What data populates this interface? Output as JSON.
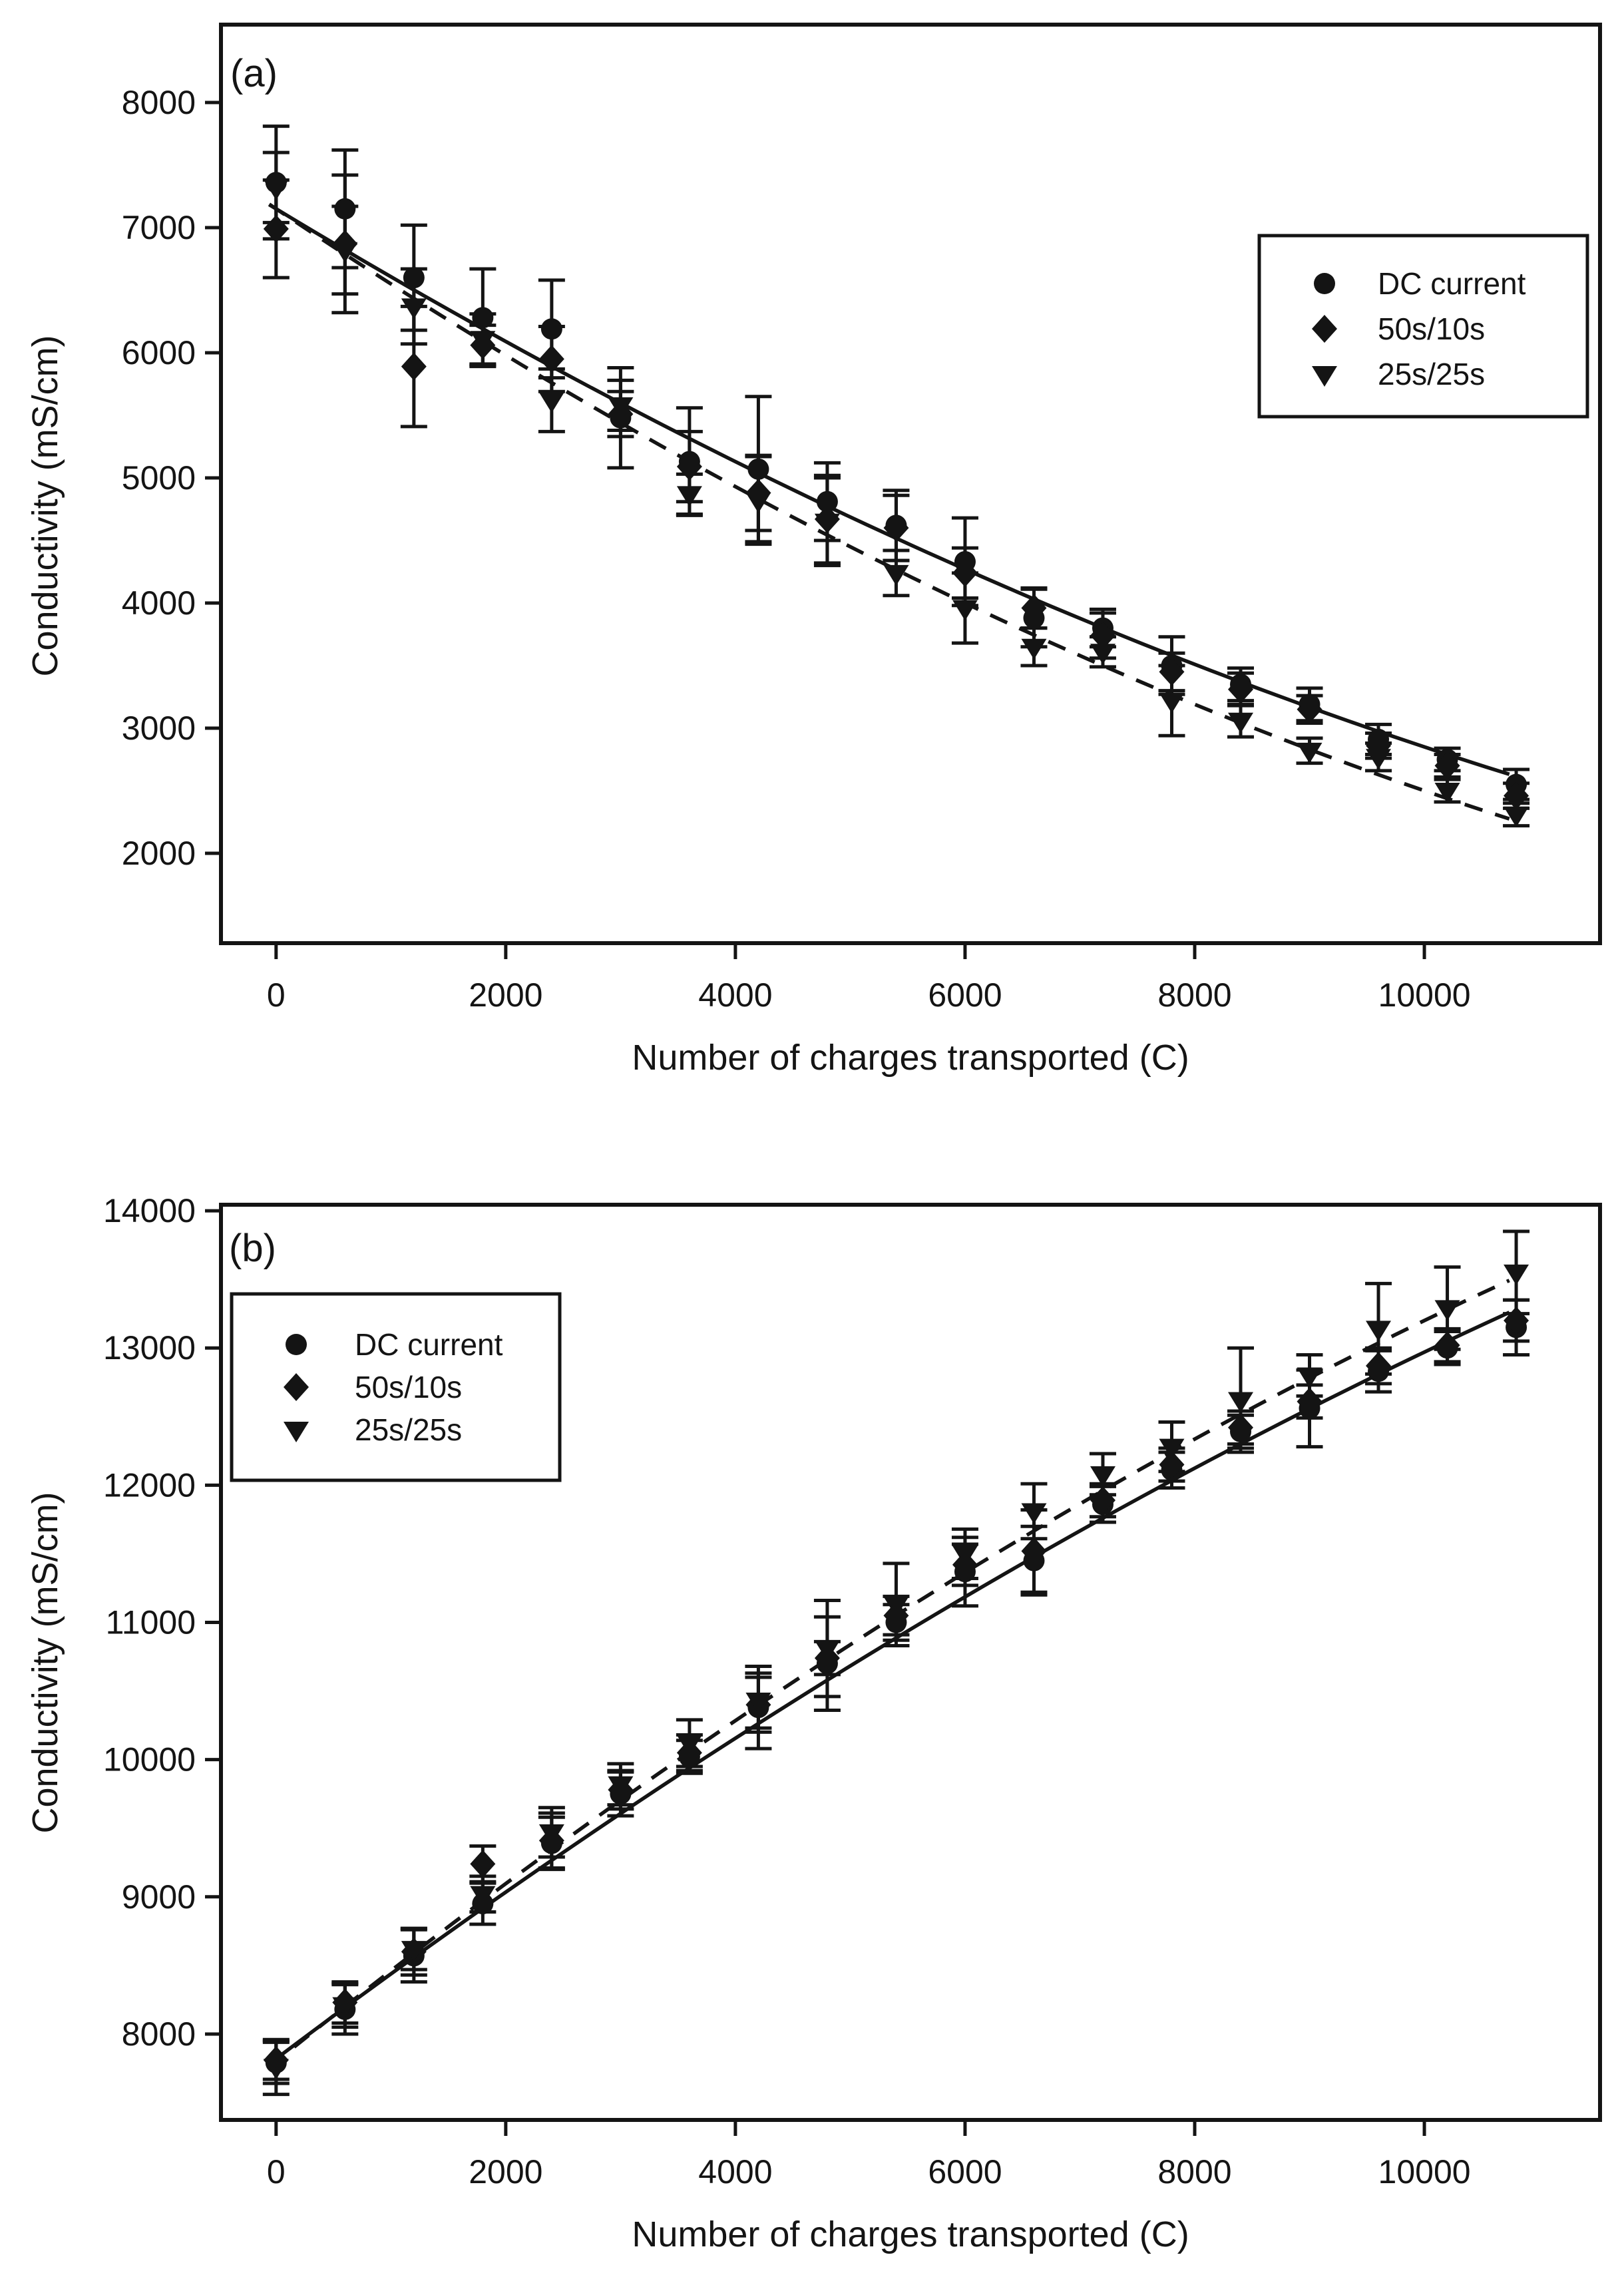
{
  "page": {
    "background": "#ffffff",
    "ink_color": "#141414"
  },
  "chart_data": [
    {
      "type": "scatter",
      "panel_label": "(a)",
      "xlabel": "Number of charges transported (C)",
      "ylabel": "Conductivity (mS/cm)",
      "xlim": [
        -480,
        11530
      ],
      "ylim": [
        1282,
        8622
      ],
      "x_ticks": [
        0,
        2000,
        4000,
        6000,
        8000,
        10000
      ],
      "x_tick_labels": [
        "0",
        "2000",
        "4000",
        "6000",
        "8000",
        "10000"
      ],
      "y_ticks": [
        2000,
        3000,
        4000,
        5000,
        6000,
        7000,
        8000
      ],
      "y_tick_labels": [
        "2000",
        "3000",
        "4000",
        "5000",
        "6000",
        "7000",
        "8000"
      ],
      "grid": false,
      "legend": {
        "position": "top-right",
        "items": [
          {
            "marker": "circle",
            "label": "DC current"
          },
          {
            "marker": "diamond",
            "label": "50s/10s"
          },
          {
            "marker": "triangle-down",
            "label": "25s/25s"
          }
        ]
      },
      "x": [
        0,
        600,
        1200,
        1800,
        2400,
        3000,
        3600,
        4200,
        4800,
        5400,
        6000,
        6600,
        7200,
        7800,
        8400,
        9000,
        9600,
        10200,
        10800
      ],
      "series": [
        {
          "name": "DC current",
          "marker": "circle",
          "y": [
            7360,
            7150,
            6600,
            6280,
            6190,
            5480,
            5130,
            5070,
            4810,
            4620,
            4330,
            3880,
            3800,
            3500,
            3350,
            3190,
            2910,
            2750,
            2550
          ],
          "err": [
            450,
            470,
            420,
            390,
            390,
            400,
            430,
            580,
            310,
            280,
            350,
            230,
            150,
            230,
            130,
            130,
            120,
            90,
            120
          ]
        },
        {
          "name": "50s/10s",
          "marker": "diamond",
          "y": [
            6990,
            6870,
            5890,
            6060,
            5950,
            5510,
            5090,
            4880,
            4670,
            4600,
            4240,
            3960,
            3740,
            3450,
            3310,
            3150,
            2860,
            2700,
            2460
          ],
          "err": [
            390,
            550,
            480,
            160,
            260,
            180,
            280,
            300,
            350,
            260,
            200,
            160,
            180,
            150,
            130,
            110,
            100,
            90,
            100
          ]
        },
        {
          "name": "25s/25s",
          "marker": "triangle-down",
          "y": [
            7320,
            6820,
            6370,
            6110,
            5620,
            5580,
            4870,
            4820,
            4650,
            4240,
            3960,
            3650,
            3610,
            3220,
            3060,
            2820,
            2770,
            2500,
            2310
          ],
          "err": [
            280,
            350,
            300,
            200,
            250,
            200,
            160,
            350,
            350,
            180,
            280,
            150,
            120,
            280,
            130,
            100,
            110,
            90,
            90
          ]
        }
      ],
      "fit_lines": [
        {
          "for": "DC current and 50s/10s",
          "style": "solid",
          "coef": [
            7150,
            -0.555,
            1.25e-05
          ],
          "x_range": [
            -60,
            10920
          ]
        },
        {
          "for": "25s/25s",
          "style": "dashed",
          "coef": [
            7150,
            -0.615,
            1.5e-05
          ],
          "x_range": [
            -60,
            10920
          ]
        }
      ]
    },
    {
      "type": "scatter",
      "panel_label": "(b)",
      "xlabel": "Number of charges transported (C)",
      "ylabel": "Conductivity (mS/cm)",
      "xlim": [
        -480,
        11530
      ],
      "ylim": [
        7374,
        14044
      ],
      "x_ticks": [
        0,
        2000,
        4000,
        6000,
        8000,
        10000
      ],
      "x_tick_labels": [
        "0",
        "2000",
        "4000",
        "6000",
        "8000",
        "10000"
      ],
      "y_ticks": [
        8000,
        9000,
        10000,
        11000,
        12000,
        13000,
        14000
      ],
      "y_tick_labels": [
        "8000",
        "9000",
        "10000",
        "11000",
        "12000",
        "13000",
        "14000"
      ],
      "grid": false,
      "legend": {
        "position": "top-left",
        "items": [
          {
            "marker": "circle",
            "label": "DC current"
          },
          {
            "marker": "diamond",
            "label": "50s/10s"
          },
          {
            "marker": "triangle-down",
            "label": "25s/25s"
          }
        ]
      },
      "x": [
        0,
        600,
        1200,
        1800,
        2400,
        3000,
        3600,
        4200,
        4800,
        5400,
        6000,
        6600,
        7200,
        7800,
        8400,
        9000,
        9600,
        10200,
        10800
      ],
      "series": [
        {
          "name": "DC current",
          "marker": "circle",
          "y": [
            7790,
            8180,
            8570,
            8950,
            9390,
            9750,
            10020,
            10380,
            10700,
            11000,
            11370,
            11450,
            11860,
            12110,
            12390,
            12560,
            12830,
            13000,
            13150
          ],
          "err": [
            150,
            180,
            190,
            150,
            190,
            160,
            120,
            300,
            340,
            130,
            250,
            250,
            130,
            130,
            120,
            280,
            150,
            120,
            200
          ]
        },
        {
          "name": "50s/10s",
          "marker": "diamond",
          "y": [
            7810,
            8230,
            8600,
            9240,
            9410,
            9780,
            10050,
            10400,
            10740,
            11050,
            11420,
            11520,
            11890,
            12150,
            12420,
            12610,
            12870,
            13020,
            13200
          ],
          "err": [
            140,
            150,
            170,
            130,
            200,
            140,
            130,
            200,
            120,
            140,
            150,
            300,
            120,
            120,
            120,
            120,
            130,
            120,
            150
          ]
        },
        {
          "name": "25s/25s",
          "marker": "triangle-down",
          "y": [
            7760,
            8210,
            8620,
            9020,
            9470,
            9820,
            10120,
            10430,
            10810,
            11130,
            11500,
            11810,
            12080,
            12280,
            12620,
            12800,
            13140,
            13290,
            13550
          ],
          "err": [
            200,
            160,
            150,
            130,
            180,
            150,
            170,
            200,
            350,
            300,
            180,
            200,
            150,
            180,
            380,
            150,
            330,
            300,
            300
          ]
        }
      ],
      "fit_lines": [
        {
          "for": "DC current and 50s/10s",
          "style": "solid",
          "coef": [
            7820,
            0.63,
            -1.15e-05
          ],
          "x_range": [
            -60,
            10920
          ]
        },
        {
          "for": "25s/25s",
          "style": "dashed",
          "coef": [
            7800,
            0.675,
            -1.35e-05
          ],
          "x_range": [
            -60,
            10920
          ]
        }
      ]
    }
  ]
}
